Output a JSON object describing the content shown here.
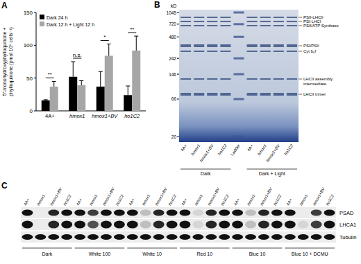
{
  "chart_data": {
    "type": "bar",
    "panel_label": "A",
    "y_label": [
      "5′-monohydroxyphylloquinone +",
      "phylloquinone (pmol 10⁶ cells⁻¹)"
    ],
    "categories": [
      "4A+",
      "hmox1",
      "hmox1+BV",
      "ho1C2"
    ],
    "series": [
      {
        "name": "Dark 24 h",
        "color": "#000000",
        "values": [
          16,
          52,
          37,
          24
        ],
        "errors": [
          1,
          23,
          23,
          14
        ]
      },
      {
        "name": "Dark 12 h + Light 12 h",
        "color": "#a6a6a6",
        "values": [
          37,
          39,
          84,
          92
        ],
        "errors": [
          8,
          7,
          18,
          22
        ]
      }
    ],
    "annotations": [
      "**",
      "n.s.",
      "*",
      "**"
    ],
    "ylim": [
      0,
      150
    ],
    "yticks": [
      0,
      50,
      100,
      150
    ],
    "legend": "upper left"
  },
  "gel": {
    "panel_label": "B",
    "unit": "kD",
    "ladder": [
      1045,
      720,
      480,
      242,
      146,
      66,
      20
    ],
    "lanes": [
      "4A+",
      "hmox1",
      "hmox1+BV",
      "ho1C2",
      "Ladder",
      "4A+",
      "hmox1",
      "hmox1+BV",
      "ho1C2"
    ],
    "groups": [
      {
        "label": "Dark",
        "lanes": [
          0,
          3
        ]
      },
      {
        "label": "Dark + Light",
        "lanes": [
          5,
          8
        ]
      }
    ],
    "bands": [
      "PSII-LHCII",
      "PSI-LHCI",
      "PSII/ATP Synthase",
      "PSI/PSII",
      "Cyt b₆f",
      "LHCII assembly intermediate",
      "LHCII trimer"
    ]
  },
  "blot": {
    "panel_label": "C",
    "genotypes": [
      "4A+",
      "hmox1",
      "hmox1+BV",
      "ho1C2"
    ],
    "conditions": [
      "Dark",
      "White 100",
      "White 10",
      "Red 10",
      "Blue 10",
      "Blue 10 + DCMU"
    ],
    "rows": [
      {
        "label": "PSAD",
        "intensity": [
          1,
          0,
          0.9,
          1,
          1,
          0.8,
          1,
          1,
          1,
          0.2,
          0.9,
          1,
          1,
          0.1,
          0.9,
          1,
          1,
          0.2,
          0.9,
          1,
          1,
          0,
          0.8,
          1
        ]
      },
      {
        "label": "LHCA1",
        "intensity": [
          1,
          0,
          0.9,
          1,
          1,
          0.7,
          1,
          1,
          1,
          0.2,
          0.9,
          1,
          1,
          0.1,
          0.9,
          1,
          1,
          0.2,
          0.9,
          1,
          1,
          0.1,
          0.8,
          1
        ]
      },
      {
        "label": "Tubulin",
        "intensity": [
          1,
          1,
          1,
          1,
          1,
          1,
          1,
          1,
          1,
          1,
          1,
          1,
          1,
          1,
          1,
          1,
          1,
          1,
          1,
          1,
          1,
          1,
          1,
          1
        ]
      }
    ]
  }
}
